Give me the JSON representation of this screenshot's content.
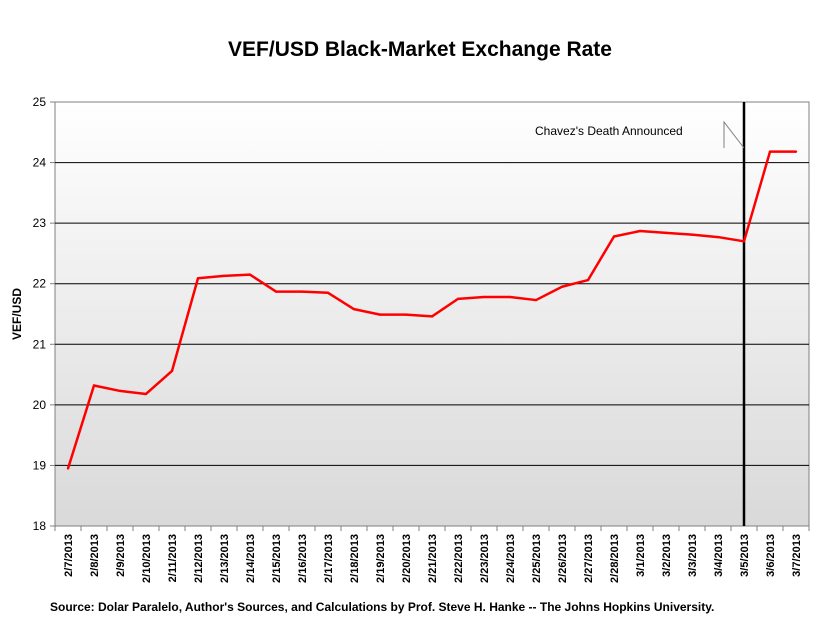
{
  "chart_data": {
    "type": "line",
    "title": "VEF/USD Black-Market Exchange Rate",
    "xlabel": "",
    "ylabel": "VEF/USD",
    "ylim": [
      18,
      25
    ],
    "yticks": [
      18,
      19,
      20,
      21,
      22,
      23,
      24,
      25
    ],
    "grid": true,
    "categories": [
      "2/7/2013",
      "2/8/2013",
      "2/9/2013",
      "2/10/2013",
      "2/11/2013",
      "2/12/2013",
      "2/13/2013",
      "2/14/2013",
      "2/15/2013",
      "2/16/2013",
      "2/17/2013",
      "2/18/2013",
      "2/19/2013",
      "2/20/2013",
      "2/21/2013",
      "2/22/2013",
      "2/23/2013",
      "2/24/2013",
      "2/25/2013",
      "2/26/2013",
      "2/27/2013",
      "2/28/2013",
      "3/1/2013",
      "3/2/2013",
      "3/3/2013",
      "3/4/2013",
      "3/5/2013",
      "3/6/2013",
      "3/7/2013"
    ],
    "series": [
      {
        "name": "VEF/USD",
        "color": "#ff0000",
        "values": [
          18.95,
          20.32,
          20.23,
          20.18,
          20.56,
          22.09,
          22.13,
          22.15,
          21.87,
          21.87,
          21.85,
          21.58,
          21.49,
          21.49,
          21.46,
          21.75,
          21.78,
          21.78,
          21.73,
          21.95,
          22.06,
          22.78,
          22.87,
          22.84,
          22.81,
          22.77,
          22.7,
          24.18,
          24.18
        ]
      }
    ],
    "annotation": {
      "text": "Chavez's Death Announced",
      "at_category": "3/5/2013"
    },
    "source": "Source: Dolar Paralelo, Author's Sources, and Calculations by Prof. Steve H. Hanke -- The Johns Hopkins University."
  }
}
